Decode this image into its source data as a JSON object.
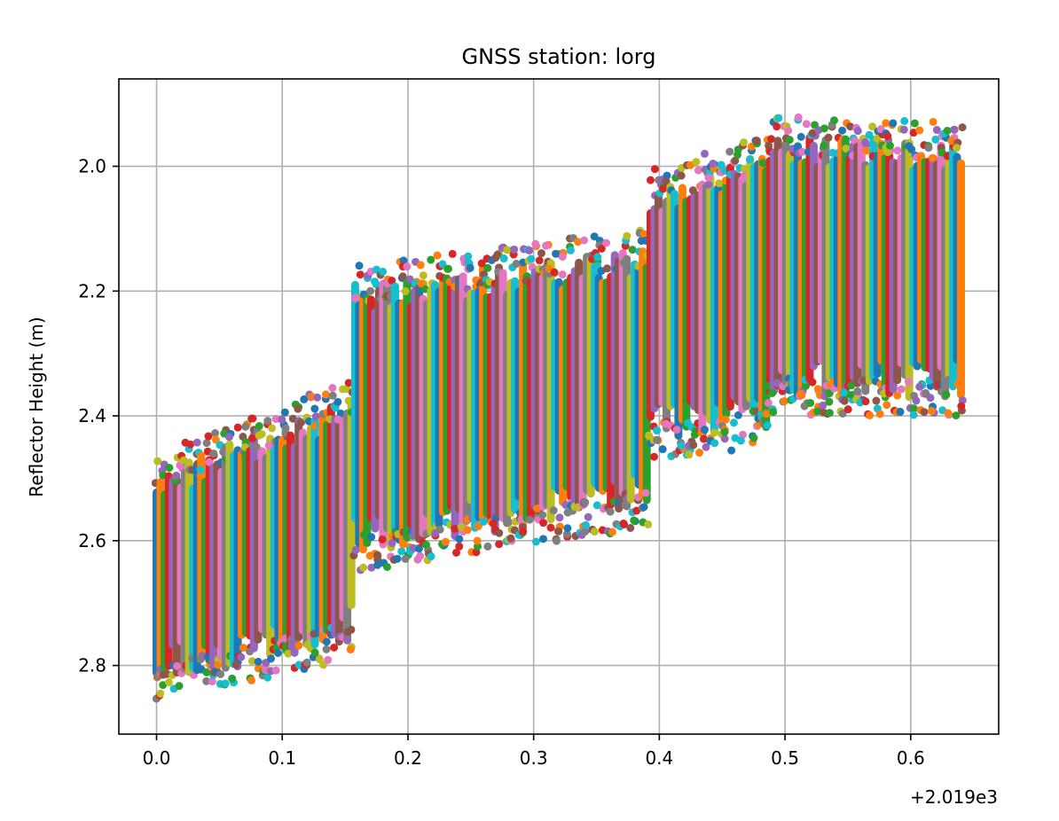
{
  "chart_data": {
    "type": "scatter",
    "title": "GNSS station: lorg",
    "xlabel": "",
    "ylabel": "Reflector Height (m)",
    "x_offset_label": "+2.019e3",
    "xlim": [
      -0.03,
      0.67
    ],
    "ylim": [
      2.91,
      1.86
    ],
    "y_inverted": true,
    "grid": true,
    "x_ticks": [
      0.0,
      0.1,
      0.2,
      0.3,
      0.4,
      0.5,
      0.6
    ],
    "x_tick_labels": [
      "0.0",
      "0.1",
      "0.2",
      "0.3",
      "0.4",
      "0.5",
      "0.6"
    ],
    "y_ticks": [
      2.0,
      2.2,
      2.4,
      2.6,
      2.8
    ],
    "y_tick_labels": [
      "2.0",
      "2.2",
      "2.4",
      "2.6",
      "2.8"
    ],
    "colors": [
      "#1f77b4",
      "#ff7f0e",
      "#2ca02c",
      "#d62728",
      "#9467bd",
      "#8c564b",
      "#e377c2",
      "#7f7f7f",
      "#bcbd22",
      "#17becf"
    ],
    "segments": [
      {
        "x": [
          0.0,
          0.155
        ],
        "y_top_start": 2.46,
        "y_top_end": 2.34,
        "y_bottom_start": 2.86,
        "y_bottom_end": 2.79
      },
      {
        "x": [
          0.158,
          0.39
        ],
        "y_top_start": 2.16,
        "y_top_end": 2.1,
        "y_bottom_start": 2.65,
        "y_bottom_end": 2.58
      },
      {
        "x": [
          0.393,
          0.485
        ],
        "y_top_start": 2.0,
        "y_top_end": 1.95,
        "y_bottom_start": 2.47,
        "y_bottom_end": 2.45
      },
      {
        "x": [
          0.488,
          0.64
        ],
        "y_top_start": 1.92,
        "y_top_end": 1.93,
        "y_bottom_start": 2.4,
        "y_bottom_end": 2.4
      }
    ]
  }
}
